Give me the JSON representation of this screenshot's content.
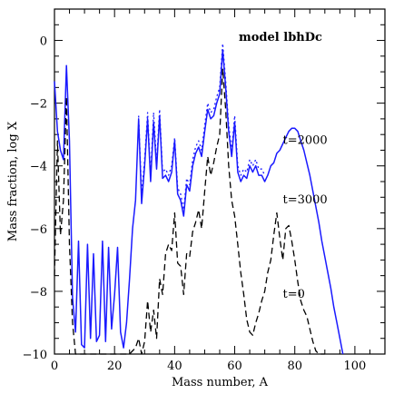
{
  "chart_data": {
    "type": "line",
    "title": "model lbhDc",
    "xlabel": "Mass number, A",
    "ylabel": "Mass fraction, log X",
    "xlim": [
      0,
      110
    ],
    "ylim": [
      -10,
      1
    ],
    "xticks": [
      0,
      20,
      40,
      60,
      80,
      100
    ],
    "yticks": [
      0,
      -2,
      -4,
      -6,
      -8,
      -10
    ],
    "grid": false,
    "legend": "none",
    "annotations": [
      {
        "text": "t=2000",
        "x": 76,
        "y": -3.3
      },
      {
        "text": "t=3000",
        "x": 76,
        "y": -5.2
      },
      {
        "text": "t=0",
        "x": 76,
        "y": -8.2
      }
    ],
    "series": [
      {
        "color": "#1a1aff",
        "style": "solid",
        "x": [
          0,
          1,
          2,
          3,
          4,
          5,
          6,
          7,
          8,
          9,
          10,
          11,
          12,
          13,
          14,
          15,
          16,
          17,
          18,
          19,
          20,
          21,
          22,
          23,
          24,
          25,
          26,
          27,
          28,
          29,
          30,
          31,
          32,
          33,
          34,
          35,
          36,
          37,
          38,
          39,
          40,
          41,
          42,
          43,
          44,
          45,
          46,
          47,
          48,
          49,
          50,
          51,
          52,
          53,
          54,
          55,
          56,
          57,
          58,
          59,
          60,
          61,
          62,
          63,
          64,
          65,
          66,
          67,
          68,
          69,
          70,
          71,
          72,
          73,
          74,
          75,
          76,
          77,
          78,
          79,
          80,
          81,
          82,
          83,
          84,
          85,
          86,
          87,
          88,
          89,
          90,
          91,
          92,
          93,
          94,
          95,
          96
        ],
        "y": [
          -1.3,
          -2.9,
          -3.5,
          -3.8,
          -0.8,
          -3.2,
          -8.2,
          -9.3,
          -6.4,
          -9.7,
          -9.8,
          -6.5,
          -9.5,
          -6.8,
          -9.6,
          -9.4,
          -6.4,
          -9.6,
          -6.6,
          -9.2,
          -8.1,
          -6.6,
          -9.3,
          -9.8,
          -9.0,
          -7.6,
          -6.0,
          -5.1,
          -2.5,
          -5.2,
          -4.0,
          -2.5,
          -4.5,
          -2.6,
          -4.1,
          -2.4,
          -4.4,
          -4.3,
          -4.5,
          -4.2,
          -3.2,
          -4.9,
          -5.1,
          -5.6,
          -4.6,
          -4.8,
          -4.0,
          -3.6,
          -3.4,
          -3.7,
          -2.9,
          -2.2,
          -2.5,
          -2.4,
          -2.0,
          -1.7,
          -0.3,
          -1.5,
          -2.9,
          -3.7,
          -2.6,
          -4.2,
          -4.5,
          -4.3,
          -4.4,
          -4.0,
          -4.2,
          -4.0,
          -4.3,
          -4.3,
          -4.5,
          -4.3,
          -4.0,
          -3.9,
          -3.6,
          -3.5,
          -3.3,
          -3.1,
          -2.9,
          -2.8,
          -2.8,
          -2.9,
          -3.2,
          -3.5,
          -3.9,
          -4.3,
          -4.8,
          -5.3,
          -5.8,
          -6.4,
          -6.9,
          -7.4,
          -7.9,
          -8.5,
          -9.0,
          -9.5,
          -10.0
        ]
      },
      {
        "color": "#1a1aff",
        "style": "dotted",
        "x": [
          28,
          29,
          30,
          31,
          32,
          33,
          34,
          35,
          36,
          37,
          38,
          39,
          40,
          41,
          42,
          43,
          44,
          45,
          46,
          47,
          48,
          49,
          50,
          51,
          52,
          53,
          54,
          55,
          56,
          57,
          58,
          59,
          60,
          61,
          62,
          63,
          64,
          65,
          66,
          67,
          68,
          69,
          70
        ],
        "y": [
          -2.4,
          -4.9,
          -3.8,
          -2.3,
          -4.3,
          -2.3,
          -3.9,
          -2.2,
          -4.2,
          -4.1,
          -4.3,
          -4.0,
          -3.1,
          -4.7,
          -4.9,
          -5.4,
          -4.4,
          -4.6,
          -3.8,
          -3.4,
          -3.2,
          -3.5,
          -2.7,
          -2.0,
          -2.3,
          -2.2,
          -1.8,
          -1.5,
          -0.1,
          -1.3,
          -2.7,
          -3.5,
          -2.4,
          -4.0,
          -4.3,
          -4.1,
          -4.2,
          -3.8,
          -4.0,
          -3.8,
          -4.1,
          -4.1,
          -4.3
        ]
      },
      {
        "color": "#000000",
        "style": "dashed",
        "x": [
          0,
          1,
          2,
          3,
          4,
          5,
          6,
          7,
          8,
          9,
          10,
          11,
          12,
          13,
          14,
          15,
          16,
          17,
          18,
          19,
          20,
          21,
          22,
          23,
          24,
          25,
          26,
          27,
          28,
          29,
          30,
          31,
          32,
          33,
          34,
          35,
          36,
          37,
          38,
          39,
          40,
          41,
          42,
          43,
          44,
          45,
          46,
          47,
          48,
          49,
          50,
          51,
          52,
          53,
          54,
          55,
          56,
          57,
          58,
          59,
          60,
          61,
          62,
          63,
          64,
          65,
          66,
          67,
          68,
          69,
          70,
          71,
          72,
          73,
          74,
          75,
          76,
          77,
          78,
          79,
          80,
          81,
          82,
          83,
          84,
          85,
          86,
          87,
          88,
          89,
          90
        ],
        "y": [
          -7.5,
          -3.2,
          -6.2,
          -5.1,
          -1.8,
          -6.5,
          -9.0,
          -10.0,
          -10.0,
          -10.0,
          -10.0,
          -10.0,
          -10.0,
          -10.0,
          -10.0,
          -10.0,
          -10.0,
          -10.0,
          -10.0,
          -10.0,
          -10.0,
          -10.0,
          -10.0,
          -10.0,
          -10.0,
          -10.0,
          -9.9,
          -9.8,
          -9.5,
          -10.0,
          -9.6,
          -8.3,
          -9.3,
          -8.6,
          -9.5,
          -7.6,
          -8.1,
          -6.8,
          -6.5,
          -6.7,
          -5.5,
          -7.1,
          -7.2,
          -8.1,
          -6.8,
          -6.9,
          -6.1,
          -5.8,
          -5.4,
          -6.0,
          -4.8,
          -3.7,
          -4.3,
          -3.9,
          -3.4,
          -3.0,
          -0.9,
          -2.2,
          -4.0,
          -5.1,
          -5.6,
          -6.5,
          -7.4,
          -8.1,
          -8.9,
          -9.3,
          -9.4,
          -9.0,
          -8.7,
          -8.3,
          -8.0,
          -7.4,
          -7.0,
          -6.2,
          -5.5,
          -6.3,
          -7.0,
          -6.0,
          -5.9,
          -6.4,
          -7.0,
          -7.7,
          -8.3,
          -8.6,
          -8.8,
          -9.2,
          -9.6,
          -9.9,
          -10.0,
          -10.0,
          -10.0
        ]
      }
    ]
  }
}
